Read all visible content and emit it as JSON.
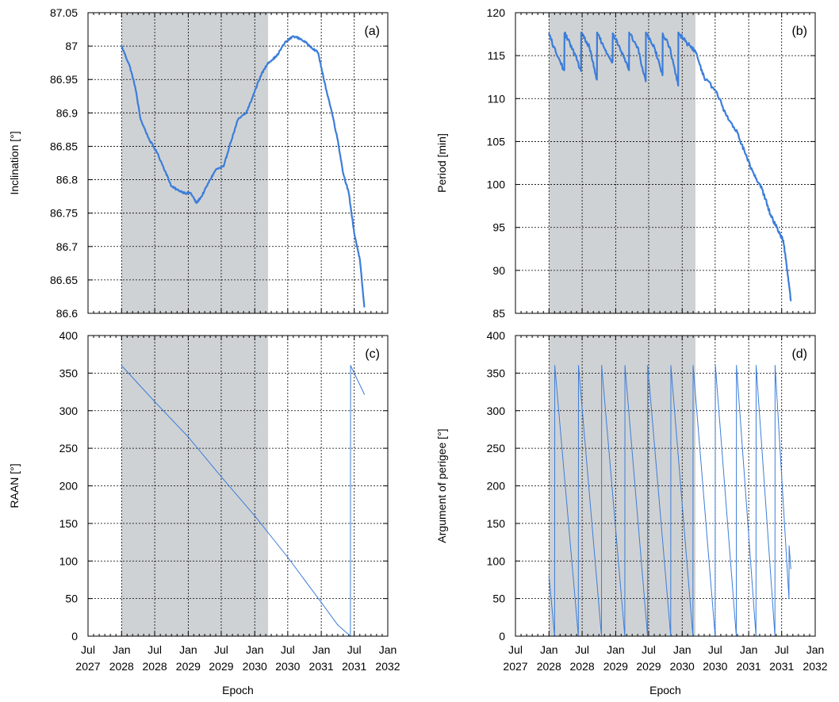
{
  "colors": {
    "line": "#3c7dd9",
    "shade": "#cfd2d4",
    "grid": "#000000"
  },
  "x_ticks": [
    "2027-07",
    "2028-01",
    "2028-07",
    "2029-01",
    "2029-07",
    "2030-01",
    "2030-07",
    "2031-01",
    "2031-07",
    "2032-01"
  ],
  "x_tick_labels": [
    [
      "Jul",
      "2027"
    ],
    [
      "Jan",
      "2028"
    ],
    [
      "Jul",
      "2028"
    ],
    [
      "Jan",
      "2029"
    ],
    [
      "Jul",
      "2029"
    ],
    [
      "Jan",
      "2030"
    ],
    [
      "Jul",
      "2030"
    ],
    [
      "Jan",
      "2031"
    ],
    [
      "Jul",
      "2031"
    ],
    [
      "Jan",
      "2032"
    ]
  ],
  "x_minor_per_major": 6,
  "chart_data": [
    {
      "id": "a",
      "type": "line",
      "panel_label": "(a)",
      "xlabel": "",
      "ylabel": "Inclination [°]",
      "xlim": [
        "2027-07-01",
        "2032-01-01"
      ],
      "ylim": [
        86.6,
        87.05
      ],
      "yticks": [
        86.6,
        86.65,
        86.7,
        86.75,
        86.8,
        86.85,
        86.9,
        86.95,
        87,
        87.05
      ],
      "ytick_labels": [
        "86.6",
        "86.65",
        "86.7",
        "86.75",
        "86.8",
        "86.85",
        "86.9",
        "86.95",
        "87",
        "87.05"
      ],
      "shaded_interval": [
        "2028-01-01",
        "2030-03-15"
      ],
      "grid": true,
      "series": [
        {
          "x": [
            "2028-01-01",
            "2028-02-15",
            "2028-03-15",
            "2028-04-15",
            "2028-06-01",
            "2028-07-15",
            "2028-09-01",
            "2028-10-01",
            "2028-11-01",
            "2028-12-15",
            "2029-01-15",
            "2029-02-15",
            "2029-03-15",
            "2029-05-01",
            "2029-06-01",
            "2029-07-15",
            "2029-08-15",
            "2029-10-01",
            "2029-11-15",
            "2029-12-15",
            "2030-02-01",
            "2030-03-15",
            "2030-05-01",
            "2030-06-15",
            "2030-08-01",
            "2030-09-15",
            "2030-11-01",
            "2030-12-15",
            "2031-01-15",
            "2031-03-01",
            "2031-04-01",
            "2031-05-01",
            "2031-06-01",
            "2031-07-01",
            "2031-08-01",
            "2031-08-25"
          ],
          "y": [
            87.0,
            86.97,
            86.94,
            86.89,
            86.86,
            86.84,
            86.81,
            86.79,
            86.785,
            86.78,
            86.78,
            86.765,
            86.775,
            86.8,
            86.815,
            86.82,
            86.85,
            86.89,
            86.9,
            86.92,
            86.955,
            86.975,
            86.985,
            87.005,
            87.015,
            87.01,
            87.0,
            86.99,
            86.95,
            86.9,
            86.86,
            86.81,
            86.78,
            86.72,
            86.68,
            86.61
          ],
          "jitter": 0.0015
        }
      ]
    },
    {
      "id": "b",
      "type": "line",
      "panel_label": "(b)",
      "xlabel": "",
      "ylabel": "Period [min]",
      "xlim": [
        "2027-07-01",
        "2032-01-01"
      ],
      "ylim": [
        85,
        120
      ],
      "yticks": [
        85,
        90,
        95,
        100,
        105,
        110,
        115,
        120
      ],
      "ytick_labels": [
        "85",
        "90",
        "95",
        "100",
        "105",
        "110",
        "115",
        "120"
      ],
      "shaded_interval": [
        "2028-01-01",
        "2030-03-15"
      ],
      "grid": true,
      "series": [
        {
          "x": [
            "2028-01-01",
            "2028-02-15",
            "2028-03-25",
            "2028-03-26",
            "2028-05-10",
            "2028-06-25",
            "2028-06-26",
            "2028-08-10",
            "2028-09-20",
            "2028-09-21",
            "2028-11-05",
            "2028-12-15",
            "2028-12-16",
            "2029-02-01",
            "2029-03-15",
            "2029-03-16",
            "2029-05-01",
            "2029-06-15",
            "2029-06-16",
            "2029-08-01",
            "2029-09-15",
            "2029-09-16",
            "2029-10-25",
            "2029-12-10",
            "2029-12-11",
            "2030-01-25",
            "2030-03-15",
            "2030-05-01",
            "2030-07-01",
            "2030-09-01",
            "2030-11-01",
            "2030-12-15",
            "2031-02-01",
            "2031-03-15",
            "2031-05-01",
            "2031-06-15",
            "2031-07-10",
            "2031-08-01",
            "2031-08-20"
          ],
          "y": [
            117.5,
            115.0,
            113.3,
            117.6,
            115.8,
            113.2,
            117.7,
            116.0,
            112.2,
            117.7,
            115.6,
            114.3,
            117.6,
            115.5,
            113.3,
            117.7,
            116.0,
            112.0,
            117.7,
            116.0,
            112.7,
            117.6,
            116.0,
            111.5,
            117.7,
            116.5,
            115.5,
            112.5,
            111.0,
            108.0,
            106.0,
            103.5,
            101.0,
            99.5,
            96.5,
            94.5,
            93.5,
            90.0,
            86.5
          ],
          "jitter": 0.25
        }
      ]
    },
    {
      "id": "c",
      "type": "line",
      "panel_label": "(c)",
      "xlabel": "Epoch",
      "ylabel": "RAAN [°]",
      "xlim": [
        "2027-07-01",
        "2032-01-01"
      ],
      "ylim": [
        0,
        400
      ],
      "yticks": [
        0,
        50,
        100,
        150,
        200,
        250,
        300,
        350,
        400
      ],
      "ytick_labels": [
        "0",
        "50",
        "100",
        "150",
        "200",
        "250",
        "300",
        "350",
        "400"
      ],
      "shaded_interval": [
        "2028-01-01",
        "2030-03-15"
      ],
      "grid": true,
      "series": [
        {
          "x": [
            "2028-01-01",
            "2028-07-01",
            "2029-01-01",
            "2029-07-01",
            "2030-01-01",
            "2030-07-01",
            "2031-01-01",
            "2031-04-01",
            "2031-06-10",
            "2031-06-11",
            "2031-07-01",
            "2031-08-25"
          ],
          "y": [
            360,
            312,
            265,
            212,
            160,
            105,
            45,
            15,
            0,
            360,
            350,
            322
          ],
          "jitter": 0
        }
      ]
    },
    {
      "id": "d",
      "type": "line",
      "panel_label": "(d)",
      "xlabel": "Epoch",
      "ylabel": "Argument of perigee [°]",
      "xlim": [
        "2027-07-01",
        "2032-01-01"
      ],
      "ylim": [
        0,
        400
      ],
      "yticks": [
        0,
        50,
        100,
        150,
        200,
        250,
        300,
        350,
        400
      ],
      "ytick_labels": [
        "0",
        "50",
        "100",
        "150",
        "200",
        "250",
        "300",
        "350",
        "400"
      ],
      "shaded_interval": [
        "2028-01-01",
        "2030-03-15"
      ],
      "grid": true,
      "series": [
        {
          "x": [
            "2028-01-01",
            "2028-02-01",
            "2028-02-02",
            "2028-06-10",
            "2028-06-11",
            "2028-10-15",
            "2028-10-16",
            "2029-02-20",
            "2029-02-21",
            "2029-06-25",
            "2029-06-26",
            "2029-10-30",
            "2029-10-31",
            "2030-03-01",
            "2030-03-02",
            "2030-07-01",
            "2030-07-02",
            "2030-10-25",
            "2030-10-26",
            "2031-02-10",
            "2031-02-11",
            "2031-05-25",
            "2031-05-26",
            "2031-08-10",
            "2031-08-11",
            "2031-08-20"
          ],
          "y": [
            80,
            0,
            360,
            0,
            360,
            0,
            360,
            0,
            360,
            0,
            360,
            0,
            360,
            0,
            360,
            0,
            360,
            0,
            360,
            0,
            360,
            0,
            360,
            50,
            120,
            90
          ],
          "jitter": 0
        }
      ]
    }
  ]
}
